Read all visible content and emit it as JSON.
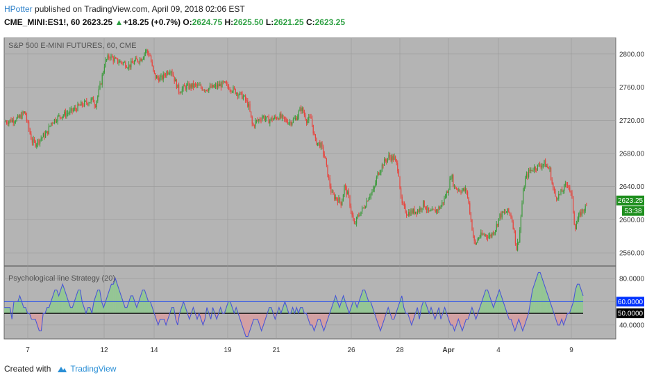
{
  "header": {
    "user": "HPotter",
    "published_text": " published on TradingView.com, April 09, 2018 02:06 EST",
    "symbol": "CME_MINI:ES1!, 60",
    "last": "2623.25",
    "change_arrow": "▲",
    "change": "+18.25 (+0.7%)",
    "o_label": "O:",
    "o_value": "2624.75",
    "h_label": "H:",
    "h_value": "2625.50",
    "l_label": "L:",
    "l_value": "2621.25",
    "c_label": "C:",
    "c_value": "2623.25"
  },
  "footer": {
    "created_with": "Created with",
    "brand": "TradingView"
  },
  "colors": {
    "background": "#b4b4b4",
    "bull": "#3a9a3a",
    "bear": "#e8413a",
    "indicator_line": "#4a56d6",
    "fill_above": "#8ec98e",
    "fill_below": "#d89ca0",
    "price_badge": "#1f8f1f",
    "ind_badge": "#0033ff"
  },
  "chart_data": [
    {
      "type": "candlestick",
      "title": "S&P 500 E-MINI FUTURES, 60, CME",
      "ylim": [
        2545,
        2820
      ],
      "yticks": [
        2560,
        2600,
        2640,
        2680,
        2720,
        2760,
        2800
      ],
      "ytick_labels": [
        "2560.00",
        "2600.00",
        "2640.00",
        "2680.00",
        "2720.00",
        "2760.00",
        "2800.00"
      ],
      "last_price_label": "2623.25",
      "countdown_label": "53:38",
      "last_price": 2623.25,
      "path_points": [
        [
          0,
          2718
        ],
        [
          20,
          2722
        ],
        [
          30,
          2730
        ],
        [
          33,
          2718
        ],
        [
          40,
          2695
        ],
        [
          45,
          2692
        ],
        [
          55,
          2700
        ],
        [
          62,
          2705
        ],
        [
          68,
          2718
        ],
        [
          80,
          2725
        ],
        [
          95,
          2730
        ],
        [
          110,
          2738
        ],
        [
          120,
          2742
        ],
        [
          128,
          2745
        ],
        [
          131,
          2738
        ],
        [
          135,
          2750
        ],
        [
          140,
          2768
        ],
        [
          145,
          2790
        ],
        [
          152,
          2798
        ],
        [
          160,
          2792
        ],
        [
          170,
          2790
        ],
        [
          180,
          2786
        ],
        [
          190,
          2792
        ],
        [
          198,
          2795
        ],
        [
          204,
          2805
        ],
        [
          210,
          2798
        ],
        [
          214,
          2780
        ],
        [
          218,
          2772
        ],
        [
          226,
          2770
        ],
        [
          234,
          2778
        ],
        [
          240,
          2782
        ],
        [
          246,
          2768
        ],
        [
          252,
          2755
        ],
        [
          260,
          2760
        ],
        [
          275,
          2762
        ],
        [
          290,
          2758
        ],
        [
          302,
          2760
        ],
        [
          316,
          2764
        ],
        [
          328,
          2758
        ],
        [
          338,
          2752
        ],
        [
          345,
          2748
        ],
        [
          352,
          2738
        ],
        [
          358,
          2712
        ],
        [
          362,
          2718
        ],
        [
          366,
          2720
        ],
        [
          372,
          2725
        ],
        [
          380,
          2720
        ],
        [
          388,
          2722
        ],
        [
          396,
          2725
        ],
        [
          404,
          2720
        ],
        [
          412,
          2718
        ],
        [
          420,
          2722
        ],
        [
          428,
          2735
        ],
        [
          436,
          2720
        ],
        [
          442,
          2722
        ],
        [
          448,
          2695
        ],
        [
          456,
          2690
        ],
        [
          462,
          2675
        ],
        [
          466,
          2655
        ],
        [
          472,
          2630
        ],
        [
          480,
          2625
        ],
        [
          486,
          2620
        ],
        [
          490,
          2640
        ],
        [
          496,
          2628
        ],
        [
          500,
          2610
        ],
        [
          504,
          2592
        ],
        [
          510,
          2605
        ],
        [
          518,
          2615
        ],
        [
          526,
          2630
        ],
        [
          532,
          2635
        ],
        [
          538,
          2655
        ],
        [
          546,
          2668
        ],
        [
          554,
          2676
        ],
        [
          562,
          2674
        ],
        [
          568,
          2660
        ],
        [
          572,
          2620
        ],
        [
          580,
          2608
        ],
        [
          590,
          2610
        ],
        [
          598,
          2612
        ],
        [
          604,
          2620
        ],
        [
          612,
          2608
        ],
        [
          620,
          2610
        ],
        [
          628,
          2615
        ],
        [
          634,
          2625
        ],
        [
          640,
          2638
        ],
        [
          644,
          2655
        ],
        [
          648,
          2640
        ],
        [
          656,
          2636
        ],
        [
          666,
          2635
        ],
        [
          670,
          2615
        ],
        [
          674,
          2590
        ],
        [
          678,
          2568
        ],
        [
          684,
          2580
        ],
        [
          692,
          2582
        ],
        [
          700,
          2580
        ],
        [
          708,
          2590
        ],
        [
          714,
          2605
        ],
        [
          720,
          2608
        ],
        [
          726,
          2610
        ],
        [
          730,
          2605
        ],
        [
          734,
          2590
        ],
        [
          738,
          2565
        ],
        [
          742,
          2580
        ],
        [
          746,
          2620
        ],
        [
          750,
          2648
        ],
        [
          756,
          2658
        ],
        [
          762,
          2662
        ],
        [
          770,
          2665
        ],
        [
          778,
          2668
        ],
        [
          786,
          2660
        ],
        [
          790,
          2640
        ],
        [
          794,
          2628
        ],
        [
          800,
          2630
        ],
        [
          808,
          2640
        ],
        [
          812,
          2645
        ],
        [
          818,
          2625
        ],
        [
          822,
          2590
        ],
        [
          826,
          2600
        ],
        [
          832,
          2610
        ],
        [
          840,
          2617
        ]
      ]
    },
    {
      "type": "line",
      "title": "Psychological line Strategy (20)",
      "ylim": [
        28,
        90
      ],
      "yticks": [
        40,
        60,
        80
      ],
      "ytick_labels": [
        "40.0000",
        "",
        "80.0000"
      ],
      "reference_lines": [
        50,
        60
      ],
      "badge_upper": "60.0000",
      "badge_lower": "50.0000",
      "upper_level": 60,
      "lower_level": 50,
      "values": [
        55,
        55,
        55,
        55,
        45,
        60,
        60,
        60,
        65,
        60,
        55,
        55,
        50,
        50,
        45,
        45,
        45,
        40,
        35,
        35,
        50,
        50,
        55,
        55,
        60,
        65,
        70,
        70,
        65,
        70,
        75,
        70,
        65,
        60,
        55,
        55,
        60,
        65,
        70,
        70,
        60,
        55,
        50,
        55,
        55,
        50,
        60,
        65,
        70,
        70,
        60,
        55,
        60,
        65,
        70,
        75,
        75,
        80,
        75,
        70,
        65,
        60,
        55,
        55,
        60,
        65,
        65,
        60,
        55,
        60,
        65,
        70,
        70,
        65,
        60,
        60,
        55,
        50,
        45,
        40,
        45,
        45,
        45,
        40,
        45,
        50,
        55,
        55,
        45,
        40,
        50,
        55,
        60,
        55,
        50,
        45,
        50,
        55,
        50,
        45,
        50,
        45,
        40,
        45,
        55,
        50,
        45,
        55,
        50,
        45,
        50,
        55,
        50,
        50,
        55,
        60,
        60,
        55,
        50,
        55,
        50,
        45,
        40,
        35,
        30,
        30,
        35,
        40,
        45,
        45,
        45,
        40,
        35,
        40,
        45,
        50,
        55,
        55,
        50,
        45,
        50,
        55,
        50,
        55,
        60,
        55,
        50,
        50,
        55,
        50,
        55,
        50,
        55,
        55,
        50,
        50,
        45,
        40,
        40,
        35,
        40,
        45,
        45,
        40,
        35,
        40,
        45,
        50,
        55,
        60,
        65,
        60,
        55,
        60,
        65,
        60,
        55,
        50,
        55,
        60,
        60,
        55,
        60,
        65,
        70,
        70,
        65,
        60,
        60,
        55,
        50,
        45,
        40,
        35,
        40,
        45,
        50,
        55,
        50,
        45,
        45,
        50,
        55,
        60,
        65,
        55,
        50,
        50,
        45,
        40,
        45,
        50,
        55,
        45,
        55,
        60,
        60,
        55,
        50,
        55,
        50,
        45,
        50,
        55,
        45,
        50,
        55,
        50,
        45,
        40,
        40,
        35,
        40,
        45,
        40,
        35,
        40,
        45,
        45,
        50,
        55,
        50,
        45,
        50,
        55,
        60,
        65,
        70,
        70,
        65,
        60,
        55,
        60,
        65,
        70,
        65,
        60,
        55,
        50,
        45,
        45,
        40,
        35,
        40,
        45,
        40,
        35,
        40,
        45,
        50,
        60,
        70,
        75,
        80,
        85,
        85,
        80,
        75,
        70,
        65,
        60,
        55,
        50,
        45,
        40,
        40,
        45,
        40,
        45,
        50,
        50,
        55,
        60,
        70,
        75,
        75,
        70,
        65
      ]
    }
  ],
  "x_axis": {
    "labels": [
      {
        "text": "7",
        "pos": 40
      },
      {
        "text": "12",
        "pos": 150
      },
      {
        "text": "14",
        "pos": 222
      },
      {
        "text": "19",
        "pos": 328
      },
      {
        "text": "21",
        "pos": 398
      },
      {
        "text": "26",
        "pos": 506
      },
      {
        "text": "28",
        "pos": 576
      },
      {
        "text": "Apr",
        "pos": 646
      },
      {
        "text": "4",
        "pos": 718
      },
      {
        "text": "9",
        "pos": 823
      }
    ]
  }
}
